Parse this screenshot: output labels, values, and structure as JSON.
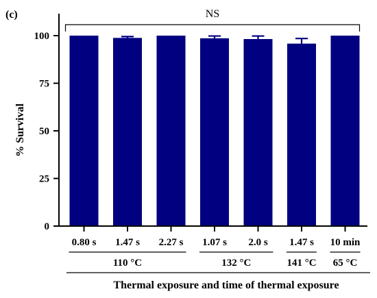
{
  "panel_label": "(c)",
  "chart_data": {
    "type": "bar",
    "title": "",
    "ylabel": "% Survival",
    "xlabel": "Thermal exposure and time of thermal exposure",
    "ylim": [
      0,
      100
    ],
    "yticks": [
      0,
      25,
      50,
      75,
      100
    ],
    "categories": [
      "0.80 s",
      "1.47 s",
      "2.27 s",
      "1.07 s",
      "2.0 s",
      "1.47 s",
      "10 min"
    ],
    "values": [
      100,
      98.8,
      100,
      98.6,
      98.2,
      95.8,
      100
    ],
    "errors": [
      0,
      0.7,
      0,
      1.2,
      1.6,
      2.7,
      0
    ],
    "groups": [
      {
        "label": "110 °C",
        "start": 0,
        "end": 2
      },
      {
        "label": "132 °C",
        "start": 3,
        "end": 4
      },
      {
        "label": "141 °C",
        "start": 5,
        "end": 5
      },
      {
        "label": "65 °C",
        "start": 6,
        "end": 6
      }
    ],
    "significance": {
      "label": "NS",
      "start": 0,
      "end": 6
    },
    "bar_color": "#000080",
    "grid": false,
    "legend": "none"
  }
}
